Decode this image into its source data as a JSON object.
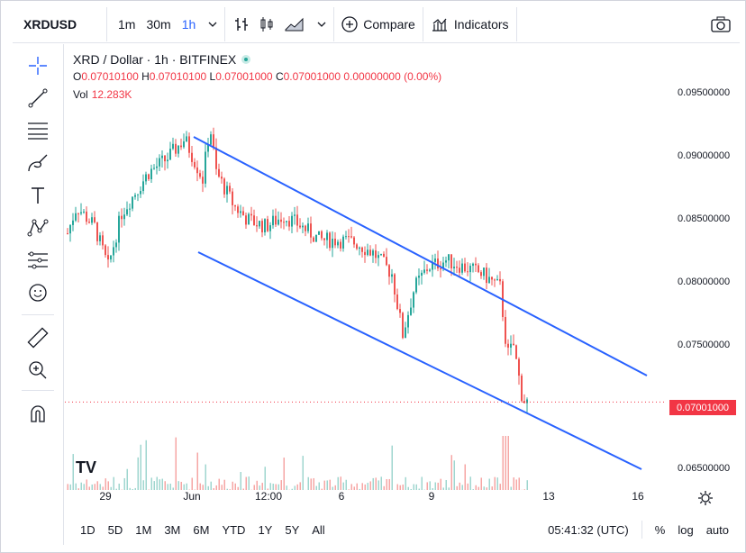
{
  "toolbar": {
    "symbol": "XRDUSD",
    "timeframes": [
      "1m",
      "30m",
      "1h"
    ],
    "active_timeframe": "1h",
    "compare_label": "Compare",
    "indicators_label": "Indicators"
  },
  "legend": {
    "title": "XRD / Dollar · 1h · BITFINEX",
    "ohlc": {
      "o_label": "O",
      "o": "0.07010100",
      "h_label": "H",
      "h": "0.07010100",
      "l_label": "L",
      "l": "0.07001000",
      "c_label": "C",
      "c": "0.07001000",
      "change": "0.00000000 (0.00%)"
    },
    "vol_label": "Vol",
    "vol_value": "12.283K"
  },
  "chart_data": {
    "type": "candlestick",
    "price_ticks": [
      "0.09500000",
      "0.09000000",
      "0.08500000",
      "0.08000000",
      "0.07500000",
      "0.06500000"
    ],
    "last_price": "0.07001000",
    "x_ticks": [
      "29",
      "Jun",
      "12:00",
      "6",
      "9",
      "13",
      "16"
    ],
    "ylim": [
      0.0635,
      0.0965
    ],
    "colors": {
      "up": "#26a69a",
      "down": "#ef5350",
      "channel": "#2962ff",
      "last": "#f23645"
    }
  },
  "bottom": {
    "ranges": [
      "1D",
      "5D",
      "1M",
      "3M",
      "6M",
      "YTD",
      "1Y",
      "5Y",
      "All"
    ],
    "clock": "05:41:32 (UTC)",
    "percent_label": "%",
    "log_label": "log",
    "auto_label": "auto"
  },
  "icons": [
    "cross-icon",
    "trendline-icon",
    "fib-icon",
    "brush-icon",
    "text-icon",
    "pattern-icon",
    "forecast-icon",
    "emoji-icon",
    "ruler-icon",
    "zoom-icon",
    "magnet-icon",
    "camera-icon",
    "settings-icon"
  ]
}
